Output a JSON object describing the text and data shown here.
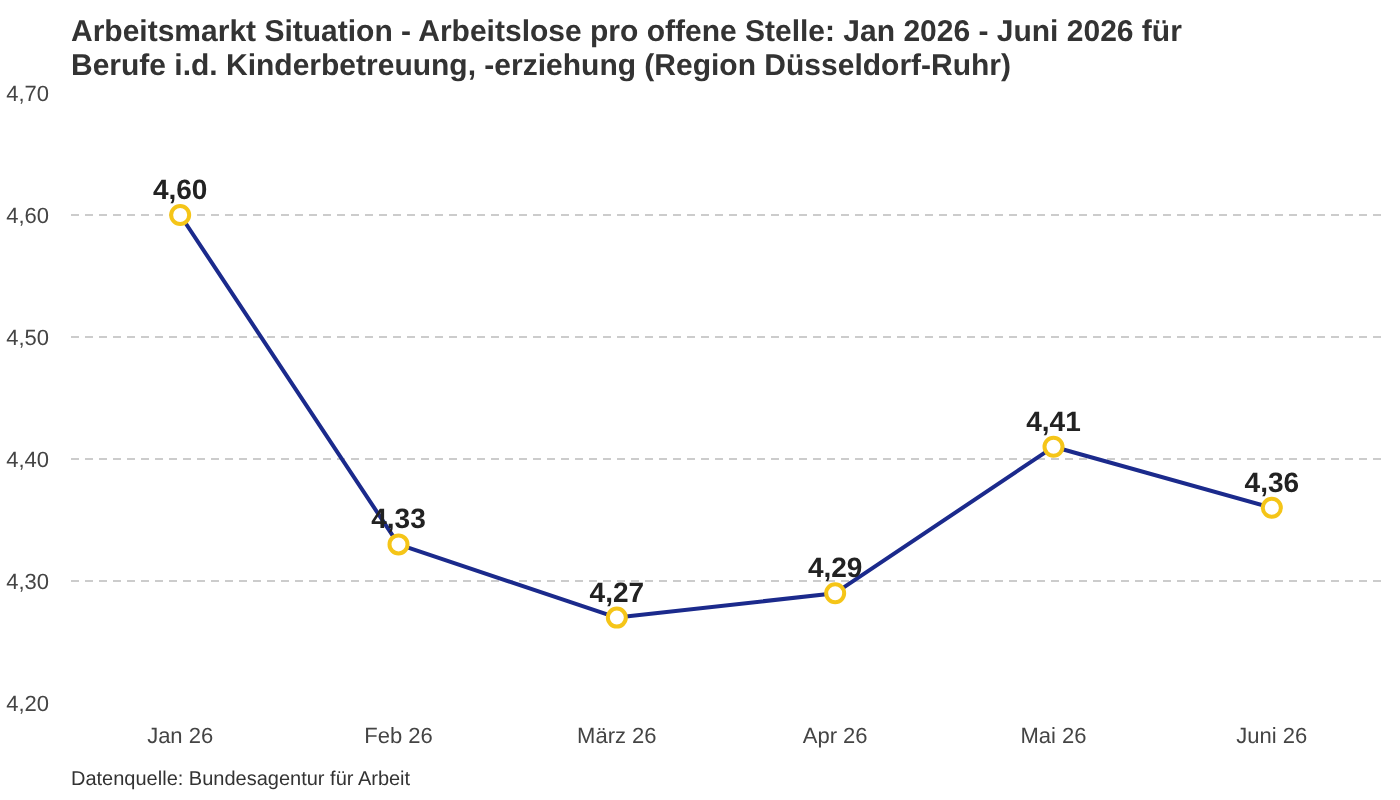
{
  "chart_data": {
    "type": "line",
    "title": "Arbeitsmarkt Situation - Arbeitslose pro offene Stelle: Jan 2026 - Juni 2026 für\nBerufe i.d. Kinderbetreuung, -erziehung (Region Düsseldorf-Ruhr)",
    "categories": [
      "Jan 26",
      "Feb 26",
      "März 26",
      "Apr 26",
      "Mai 26",
      "Juni 26"
    ],
    "series": [
      {
        "color": "#1b2a8c",
        "values": [
          4.6,
          4.33,
          4.27,
          4.29,
          4.41,
          4.36
        ]
      }
    ],
    "value_labels": [
      "4,60",
      "4,33",
      "4,27",
      "4,29",
      "4,41",
      "4,36"
    ],
    "ylim": [
      4.2,
      4.7
    ],
    "yticks": [
      {
        "value": 4.2,
        "label": "4,20"
      },
      {
        "value": 4.3,
        "label": "4,30"
      },
      {
        "value": 4.4,
        "label": "4,40"
      },
      {
        "value": 4.5,
        "label": "4,50"
      },
      {
        "value": 4.6,
        "label": "4,60"
      },
      {
        "value": 4.7,
        "label": "4,70"
      }
    ],
    "grid": "y",
    "marker": "circle",
    "line_style": "solid",
    "annotations": [
      "Datenquelle: Bundesagentur für Arbeit"
    ]
  }
}
